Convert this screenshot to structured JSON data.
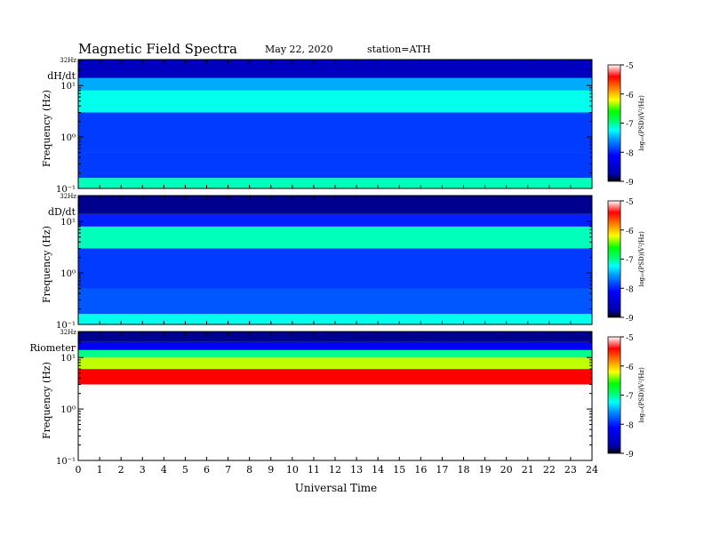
{
  "header": {
    "title": "Magnetic Field Spectra",
    "date": "May 22, 2020",
    "station": "station=ATH"
  },
  "chart_data": [
    {
      "type": "heatmap",
      "panel": "dH/dt",
      "ylabel": "Frequency (Hz)",
      "yscale": "log",
      "ytick_labels": [
        "10⁻¹",
        "10⁰",
        "10¹"
      ],
      "ytop_label": "32Hz",
      "ylim": [
        0.1,
        32
      ],
      "xlabel": "",
      "xlim": [
        0,
        24
      ],
      "colorbar": {
        "label": "log₁₀(PSD)(V²/Hz)",
        "range": [
          -9,
          -5
        ],
        "ticks": [
          "-5",
          "-6",
          "-7",
          "-8",
          "-9"
        ]
      },
      "bands": [
        {
          "f_low": 0.1,
          "f_high": 0.16,
          "log_psd": -7.1
        },
        {
          "f_low": 0.16,
          "f_high": 0.5,
          "log_psd": -7.9
        },
        {
          "f_low": 0.5,
          "f_high": 3,
          "log_psd": -7.9
        },
        {
          "f_low": 3,
          "f_high": 8,
          "log_psd": -7.2
        },
        {
          "f_low": 8,
          "f_high": 14,
          "log_psd": -7.5
        },
        {
          "f_low": 14,
          "f_high": 32,
          "log_psd": -8.6
        }
      ]
    },
    {
      "type": "heatmap",
      "panel": "dD/dt",
      "ylabel": "Frequency (Hz)",
      "yscale": "log",
      "ytick_labels": [
        "10⁻¹",
        "10⁰",
        "10¹"
      ],
      "ytop_label": "32Hz",
      "ylim": [
        0.1,
        32
      ],
      "xlabel": "",
      "xlim": [
        0,
        24
      ],
      "colorbar": {
        "label": "log₁₀(PSD)(V²/Hz)",
        "range": [
          -9,
          -5
        ],
        "ticks": [
          "-5",
          "-6",
          "-7",
          "-8",
          "-9"
        ]
      },
      "bands": [
        {
          "f_low": 0.1,
          "f_high": 0.16,
          "log_psd": -7.2
        },
        {
          "f_low": 0.16,
          "f_high": 0.5,
          "log_psd": -7.8
        },
        {
          "f_low": 0.5,
          "f_high": 3,
          "log_psd": -7.9
        },
        {
          "f_low": 3,
          "f_high": 8,
          "log_psd": -7.1
        },
        {
          "f_low": 8,
          "f_high": 14,
          "log_psd": -8.0
        },
        {
          "f_low": 14,
          "f_high": 32,
          "log_psd": -8.8
        }
      ]
    },
    {
      "type": "heatmap",
      "panel": "Riometer",
      "ylabel": "Frequency (Hz)",
      "yscale": "log",
      "ytick_labels": [
        "10⁻¹",
        "10⁰",
        "10¹"
      ],
      "ytop_label": "32Hz",
      "ylim": [
        0.1,
        32
      ],
      "xlabel": "Universal Time",
      "xlim": [
        0,
        24
      ],
      "xtick_labels": [
        "0",
        "1",
        "2",
        "3",
        "4",
        "5",
        "6",
        "7",
        "8",
        "9",
        "10",
        "11",
        "12",
        "13",
        "14",
        "15",
        "16",
        "17",
        "18",
        "19",
        "20",
        "21",
        "22",
        "23",
        "24"
      ],
      "colorbar": {
        "label": "log₁₀(PSD)(V²/Hz)",
        "range": [
          -9,
          -5
        ],
        "ticks": [
          "-5",
          "-6",
          "-7",
          "-8",
          "-9"
        ]
      },
      "bands": [
        {
          "f_low": 0.1,
          "f_high": 0.3,
          "log_psd": -5.0
        },
        {
          "f_low": 0.3,
          "f_high": 3,
          "log_psd": -5.0
        },
        {
          "f_low": 3,
          "f_high": 6,
          "log_psd": -5.4
        },
        {
          "f_low": 6,
          "f_high": 10,
          "log_psd": -6.3
        },
        {
          "f_low": 10,
          "f_high": 14,
          "log_psd": -7.0
        },
        {
          "f_low": 14,
          "f_high": 20,
          "log_psd": -8.2
        },
        {
          "f_low": 20,
          "f_high": 32,
          "log_psd": -8.8
        }
      ]
    }
  ]
}
